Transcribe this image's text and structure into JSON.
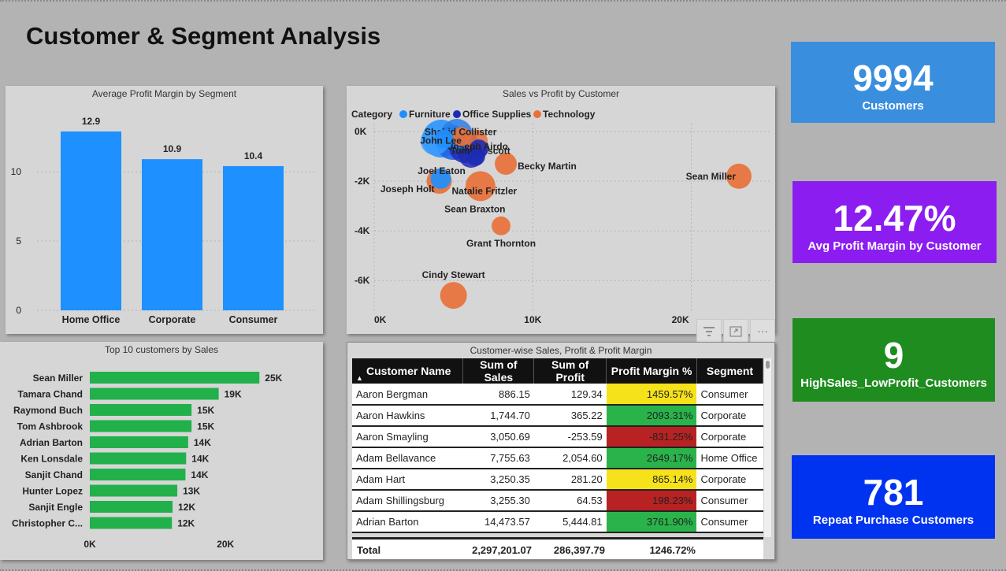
{
  "page": {
    "title": "Customer & Segment Analysis"
  },
  "colors": {
    "furniture": "#1f8fff",
    "office_supplies": "#1e2bb4",
    "technology": "#e8713a",
    "bar_blue": "#1e90ff",
    "bar_green": "#22b04b"
  },
  "kpis": [
    {
      "value": "9994",
      "label": "Customers",
      "color": "#3a8ede"
    },
    {
      "value": "12.47%",
      "label": "Avg Profit Margin by Customer",
      "color": "#8c1df0"
    },
    {
      "value": "9",
      "label": "HighSales_LowProfit_Customers",
      "color": "#1f8c1f"
    },
    {
      "value": "781",
      "label": "Repeat Purchase Customers",
      "color": "#0033f0"
    }
  ],
  "segment_chart": {
    "title": "Average Profit Margin by Segment",
    "chart_data": {
      "type": "bar",
      "categories": [
        "Home Office",
        "Corporate",
        "Consumer"
      ],
      "values": [
        12.9,
        10.9,
        10.4
      ],
      "value_labels": [
        "12.9",
        "10.9",
        "10.4"
      ],
      "yticks": [
        "0",
        "5",
        "10"
      ],
      "ylim": [
        0,
        14.6
      ],
      "grid": true
    }
  },
  "scatter_chart": {
    "title": "Sales vs Profit by Customer",
    "legend_title": "Category",
    "legend": [
      "Furniture",
      "Office Supplies",
      "Technology"
    ],
    "xticks": [
      "0K",
      "10K",
      "20K"
    ],
    "yticks": [
      "0K",
      "-2K",
      "-4K",
      "-6K"
    ],
    "chart_data": {
      "type": "scatter",
      "xlim": [
        0,
        23000
      ],
      "ylim": [
        -7200,
        0
      ],
      "points": [
        {
          "label": "Sean Miller",
          "x": 23000,
          "y": -1800,
          "category": "Technology"
        },
        {
          "label": "Cindy Stewart",
          "x": 5000,
          "y": -6600,
          "category": "Technology"
        },
        {
          "label": "Grant Thornton",
          "x": 8000,
          "y": -3800,
          "category": "Technology"
        },
        {
          "label": "Sean Braxton",
          "x": 6500,
          "y": -2300,
          "category": "Technology"
        },
        {
          "label": "Natalie Fritzler",
          "x": 6700,
          "y": -2200,
          "category": "Technology"
        },
        {
          "label": "Joseph Holt",
          "x": 4100,
          "y": -2000,
          "category": "Technology"
        },
        {
          "label": "Joel Eaton",
          "x": 4200,
          "y": -1900,
          "category": "Furniture"
        },
        {
          "label": "Becky Martin",
          "x": 8300,
          "y": -1300,
          "category": "Technology"
        },
        {
          "label": "Tom Prescott",
          "x": 6400,
          "y": -1000,
          "category": "Office Supplies"
        },
        {
          "label": "Joseph Airdo",
          "x": 6600,
          "y": -700,
          "category": "Office Supplies"
        },
        {
          "label": "Shahid Collister",
          "x": 5500,
          "y": -200,
          "category": "Technology"
        },
        {
          "label": "John Lee",
          "x": 4400,
          "y": -300,
          "category": "Furniture"
        }
      ]
    }
  },
  "top_customers_chart": {
    "title": "Top 10 customers by Sales",
    "xticks": [
      "0K",
      "20K"
    ],
    "chart_data": {
      "type": "bar",
      "categories": [
        "Sean Miller",
        "Tamara Chand",
        "Raymond Buch",
        "Tom Ashbrook",
        "Adrian Barton",
        "Ken Lonsdale",
        "Sanjit Chand",
        "Hunter Lopez",
        "Sanjit Engle",
        "Christopher C..."
      ],
      "values": [
        25000,
        19000,
        15000,
        15000,
        14500,
        14200,
        14100,
        12900,
        12200,
        12100
      ],
      "value_labels": [
        "25K",
        "19K",
        "15K",
        "15K",
        "14K",
        "14K",
        "14K",
        "13K",
        "12K",
        "12K"
      ],
      "xlim": [
        0,
        28800
      ]
    }
  },
  "table": {
    "title": "Customer-wise Sales, Profit & Profit Margin",
    "columns": [
      "Customer Name",
      "Sum of Sales",
      "Sum of Profit",
      "Profit Margin %",
      "Segment"
    ],
    "rows": [
      {
        "name": "Aaron Bergman",
        "sales": "886.15",
        "profit": "129.34",
        "margin": "1459.57%",
        "segment": "Consumer",
        "mcolor": "#f5e21b"
      },
      {
        "name": "Aaron Hawkins",
        "sales": "1,744.70",
        "profit": "365.22",
        "margin": "2093.31%",
        "segment": "Corporate",
        "mcolor": "#2ab34a"
      },
      {
        "name": "Aaron Smayling",
        "sales": "3,050.69",
        "profit": "-253.59",
        "margin": "-831.25%",
        "segment": "Corporate",
        "mcolor": "#b82222"
      },
      {
        "name": "Adam Bellavance",
        "sales": "7,755.63",
        "profit": "2,054.60",
        "margin": "2649.17%",
        "segment": "Home Office",
        "mcolor": "#2ab34a"
      },
      {
        "name": "Adam Hart",
        "sales": "3,250.35",
        "profit": "281.20",
        "margin": "865.14%",
        "segment": "Corporate",
        "mcolor": "#f5e21b"
      },
      {
        "name": "Adam Shillingsburg",
        "sales": "3,255.30",
        "profit": "64.53",
        "margin": "198.23%",
        "segment": "Consumer",
        "mcolor": "#b82222"
      },
      {
        "name": "Adrian Barton",
        "sales": "14,473.57",
        "profit": "5,444.81",
        "margin": "3761.90%",
        "segment": "Consumer",
        "mcolor": "#2ab34a"
      }
    ],
    "total": {
      "label": "Total",
      "sales": "2,297,201.07",
      "profit": "286,397.79",
      "margin": "1246.72%"
    }
  },
  "toolbar": {
    "filter_icon": "filter-icon",
    "focus_icon": "focus-mode-icon",
    "more_icon": "more-options-icon",
    "more_glyph": "···"
  }
}
